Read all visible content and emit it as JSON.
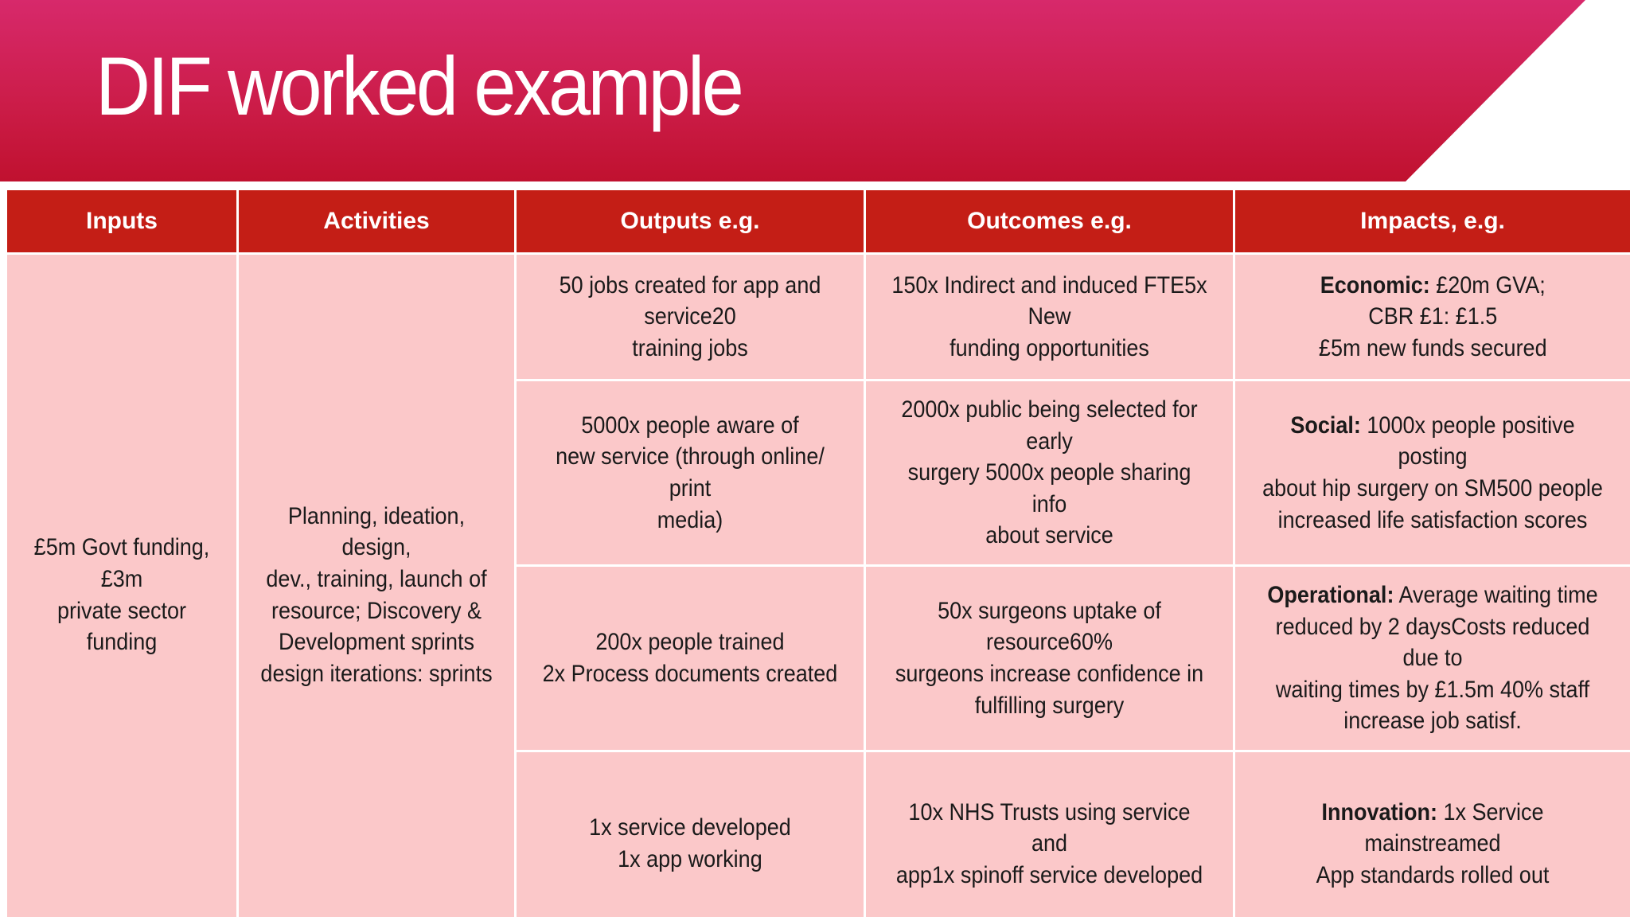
{
  "slide": {
    "title": "DIF worked example",
    "colors": {
      "banner_top": "#d7296b",
      "banner_bottom": "#c0112f",
      "header_bg": "#c41e16",
      "cell_bg": "#fbc8c9"
    }
  },
  "table": {
    "headers": [
      "Inputs",
      "Activities",
      "Outputs e.g.",
      "Outcomes e.g.",
      "Impacts, e.g."
    ],
    "inputs": [
      "£5m Govt funding,£3m",
      "private sector funding"
    ],
    "activities": [
      "Planning, ideation, design,",
      "dev., training, launch of",
      "resource; Discovery &",
      "Development sprints",
      "design iterations: sprints"
    ],
    "outputs": [
      [
        "50 jobs created for app and service20",
        "training jobs"
      ],
      [
        "5000x people aware of",
        "new service (through online/ print",
        "media)"
      ],
      [
        "200x people trained",
        "2x Process documents created"
      ],
      [
        "1x service developed",
        "1x app working"
      ]
    ],
    "outcomes": [
      [
        "150x Indirect and induced FTE5x New",
        "funding opportunities"
      ],
      [
        "2000x public being selected for early",
        "surgery 5000x people sharing info",
        "about service"
      ],
      [
        "50x surgeons uptake of resource60%",
        "surgeons increase confidence in",
        "fulfilling surgery"
      ],
      [
        "10x NHS Trusts using service and",
        "app1x spinoff service developed"
      ]
    ],
    "impacts": {
      "economic": {
        "label": "Economic:",
        "lines": [
          " £20m GVA;",
          "CBR £1: £1.5",
          "£5m new funds secured"
        ]
      },
      "social": {
        "label": "Social:",
        "lines": [
          " 1000x people positive  posting",
          "about hip surgery on SM500 people",
          "increased life satisfaction scores"
        ]
      },
      "operational": {
        "label": "Operational:",
        "lines": [
          " Average waiting time",
          "reduced by 2 daysCosts reduced due to",
          "waiting times by £1.5m 40% staff",
          "increase job satisf."
        ]
      },
      "innovation": {
        "label": "Innovation:",
        "lines": [
          " 1x Service mainstreamed",
          "App standards rolled out"
        ]
      }
    }
  }
}
